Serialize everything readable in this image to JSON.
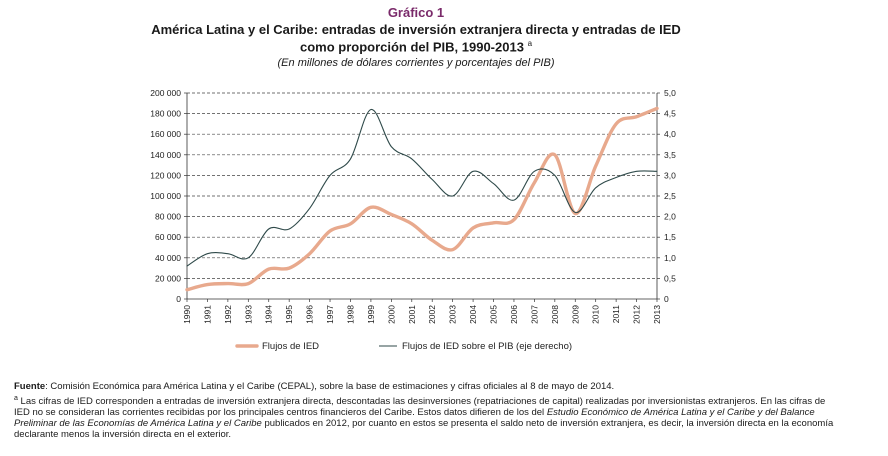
{
  "figure": {
    "label": "Gráfico 1",
    "title_line1": "América Latina y el Caribe: entradas de inversión extranjera directa y entradas de IED",
    "title_line2": "como proporción del PIB, 1990-2013",
    "title_mark": "a",
    "subtitle": "(En millones de dólares corrientes y porcentajes del PIB)"
  },
  "chart_data": {
    "type": "line",
    "x": [
      "1990",
      "1991",
      "1992",
      "1993",
      "1994",
      "1995",
      "1996",
      "1997",
      "1998",
      "1999",
      "2000",
      "2001",
      "2002",
      "2003",
      "2004",
      "2005",
      "2006",
      "2007",
      "2008",
      "2009",
      "2010",
      "2011",
      "2012",
      "2013"
    ],
    "series": [
      {
        "name": "Flujos de IED",
        "axis": "left",
        "color": "#e8a98d",
        "values": [
          9000,
          14000,
          15000,
          15000,
          29000,
          30000,
          44000,
          66000,
          73000,
          89000,
          82000,
          73000,
          57000,
          48000,
          69000,
          74000,
          77000,
          113000,
          140000,
          83000,
          129000,
          170000,
          177000,
          185000
        ]
      },
      {
        "name": "Flujos de IED sobre el PIB (eje derecho)",
        "axis": "right",
        "color": "#2f4a4a",
        "values": [
          0.8,
          1.1,
          1.1,
          1.0,
          1.7,
          1.7,
          2.2,
          3.0,
          3.4,
          4.6,
          3.7,
          3.4,
          2.9,
          2.5,
          3.1,
          2.8,
          2.4,
          3.1,
          3.0,
          2.1,
          2.7,
          2.95,
          3.1,
          3.1
        ]
      }
    ],
    "y_left": {
      "min": 0,
      "max": 200000,
      "ticks": [
        "0",
        "20 000",
        "40 000",
        "60 000",
        "80 000",
        "100 000",
        "120 000",
        "140 000",
        "160 000",
        "180 000",
        "200 000"
      ]
    },
    "y_right": {
      "min": 0,
      "max": 5,
      "ticks": [
        "0",
        "0,5",
        "1,0",
        "1,5",
        "2,0",
        "2,5",
        "3,0",
        "3,5",
        "4,0",
        "4,5",
        "5,0"
      ]
    },
    "grid": "horizontal dashed",
    "legend_position": "bottom"
  },
  "footer": {
    "source_label": "Fuente",
    "source_text": ":  Comisión Económica para América Latina y el Caribe (CEPAL), sobre la base de estimaciones y cifras oficiales al 8 de mayo de 2014.",
    "note_mark": "a",
    "note_text": " Las cifras de IED corresponden a entradas de inversión extranjera directa, descontadas las desinversiones (repatriaciones de capital) realizadas por inversionistas extranjeros. En las cifras de IED no se consideran las corrientes recibidas por los principales centros financieros del Caribe. Estos datos difieren de los del ",
    "note_italic": "Estudio Económico de América Latina y el Caribe y del Balance Preliminar de las Economías de América Latina y el Caribe",
    "note_text_end": " publicados en 2012, por cuanto en estos se presenta el saldo neto de inversión extranjera, es decir, la inversión directa en la economía declarante menos la inversión directa en el exterior."
  }
}
